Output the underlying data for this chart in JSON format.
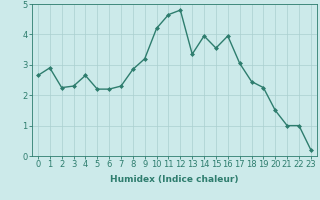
{
  "x": [
    0,
    1,
    2,
    3,
    4,
    5,
    6,
    7,
    8,
    9,
    10,
    11,
    12,
    13,
    14,
    15,
    16,
    17,
    18,
    19,
    20,
    21,
    22,
    23
  ],
  "y": [
    2.65,
    2.9,
    2.25,
    2.3,
    2.65,
    2.2,
    2.2,
    2.3,
    2.85,
    3.2,
    4.2,
    4.65,
    4.8,
    3.35,
    3.95,
    3.55,
    3.95,
    3.05,
    2.45,
    2.25,
    1.5,
    1.0,
    1.0,
    0.2
  ],
  "line_color": "#2e7d6e",
  "marker": "D",
  "marker_size": 2.0,
  "bg_color": "#cceaea",
  "grid_color": "#aacfcf",
  "xlabel": "Humidex (Indice chaleur)",
  "xlim": [
    -0.5,
    23.5
  ],
  "ylim": [
    0,
    5
  ],
  "yticks": [
    0,
    1,
    2,
    3,
    4,
    5
  ],
  "xticks": [
    0,
    1,
    2,
    3,
    4,
    5,
    6,
    7,
    8,
    9,
    10,
    11,
    12,
    13,
    14,
    15,
    16,
    17,
    18,
    19,
    20,
    21,
    22,
    23
  ],
  "xlabel_fontsize": 6.5,
  "tick_fontsize": 6.0,
  "line_width": 1.0
}
